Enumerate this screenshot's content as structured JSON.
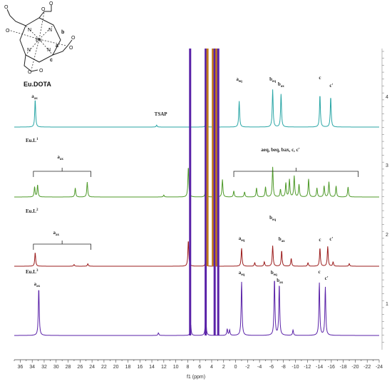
{
  "chart_data": {
    "type": "line",
    "xlabel": "f1 (ppm)",
    "x_reversed": true,
    "xlim": [
      37,
      -24
    ],
    "x_ticks": [
      36,
      34,
      32,
      30,
      28,
      26,
      24,
      22,
      20,
      18,
      16,
      14,
      12,
      10,
      8,
      6,
      4,
      2,
      0,
      -2,
      -4,
      -6,
      -8,
      -10,
      -12,
      -14,
      -16,
      -18,
      -20,
      -22,
      -24
    ],
    "right_axis_ticks": [
      "1",
      "2",
      "3",
      "4"
    ],
    "colors": {
      "eu_dota": "#2aa6a6",
      "eu_l1": "#4f9a2a",
      "eu_l2": "#9b1c1c",
      "eu_l3": "#5a22a8",
      "solvent_orange": "#c07a1a"
    },
    "series": [
      {
        "name": "Eu.DOTA",
        "trace": 4,
        "peaks": [
          {
            "ppm": 33.5,
            "h": 0.55
          },
          {
            "ppm": 13.2,
            "h": 0.04
          },
          {
            "ppm": 5.0,
            "h": 0.08
          },
          {
            "ppm": -0.6,
            "h": 0.52
          },
          {
            "ppm": -6.2,
            "h": 0.75
          },
          {
            "ppm": -7.6,
            "h": 0.66
          },
          {
            "ppm": -14.1,
            "h": 0.64
          },
          {
            "ppm": -15.9,
            "h": 0.6
          }
        ]
      },
      {
        "name": "Eu.L1",
        "trace": 3,
        "peaks": [
          {
            "ppm": 33.6,
            "h": 0.2
          },
          {
            "ppm": 33.1,
            "h": 0.24
          },
          {
            "ppm": 26.8,
            "h": 0.18
          },
          {
            "ppm": 24.8,
            "h": 0.3
          },
          {
            "ppm": 12.0,
            "h": 0.04
          },
          {
            "ppm": 7.9,
            "h": 0.6
          },
          {
            "ppm": 5.0,
            "h": 0.2
          },
          {
            "ppm": 2.2,
            "h": 0.35
          },
          {
            "ppm": 0.3,
            "h": 0.12
          },
          {
            "ppm": -1.5,
            "h": 0.1
          },
          {
            "ppm": -3.5,
            "h": 0.18
          },
          {
            "ppm": -5.0,
            "h": 0.2
          },
          {
            "ppm": -6.2,
            "h": 0.6
          },
          {
            "ppm": -7.5,
            "h": 0.15
          },
          {
            "ppm": -8.4,
            "h": 0.28
          },
          {
            "ppm": -9.0,
            "h": 0.35
          },
          {
            "ppm": -9.8,
            "h": 0.42
          },
          {
            "ppm": -10.6,
            "h": 0.25
          },
          {
            "ppm": -12.2,
            "h": 0.36
          },
          {
            "ppm": -13.6,
            "h": 0.18
          },
          {
            "ppm": -14.8,
            "h": 0.22
          },
          {
            "ppm": -15.6,
            "h": 0.3
          },
          {
            "ppm": -16.8,
            "h": 0.22
          },
          {
            "ppm": -18.8,
            "h": 0.2
          }
        ]
      },
      {
        "name": "Eu.L2",
        "trace": 2,
        "peaks": [
          {
            "ppm": 33.5,
            "h": 0.32
          },
          {
            "ppm": 27.0,
            "h": 0.04
          },
          {
            "ppm": 24.7,
            "h": 0.06
          },
          {
            "ppm": 7.9,
            "h": 0.6
          },
          {
            "ppm": 5.0,
            "h": 0.15
          },
          {
            "ppm": -1.0,
            "h": 0.42
          },
          {
            "ppm": -3.2,
            "h": 0.08
          },
          {
            "ppm": -4.8,
            "h": 0.1
          },
          {
            "ppm": -6.2,
            "h": 0.48
          },
          {
            "ppm": -7.7,
            "h": 0.36
          },
          {
            "ppm": -9.3,
            "h": 0.18
          },
          {
            "ppm": -12.1,
            "h": 0.08
          },
          {
            "ppm": -14.1,
            "h": 0.42
          },
          {
            "ppm": -15.4,
            "h": 0.46
          },
          {
            "ppm": -16.3,
            "h": 0.1
          },
          {
            "ppm": -19.0,
            "h": 0.06
          }
        ]
      },
      {
        "name": "Eu.L3",
        "trace": 1,
        "peaks": [
          {
            "ppm": 32.9,
            "h": 0.88
          },
          {
            "ppm": 12.9,
            "h": 0.05
          },
          {
            "ppm": 7.5,
            "h": 0.2
          },
          {
            "ppm": 5.0,
            "h": 0.4
          },
          {
            "ppm": 1.4,
            "h": 0.12
          },
          {
            "ppm": 1.0,
            "h": 0.1
          },
          {
            "ppm": -1.0,
            "h": 1.0
          },
          {
            "ppm": -6.5,
            "h": 1.05
          },
          {
            "ppm": -7.3,
            "h": 0.95
          },
          {
            "ppm": -9.6,
            "h": 0.1
          },
          {
            "ppm": -14.0,
            "h": 0.98
          },
          {
            "ppm": -15.0,
            "h": 0.9
          }
        ]
      }
    ],
    "series_labels": [
      {
        "trace": 3,
        "text": "Eu.L",
        "sup": "1"
      },
      {
        "trace": 2,
        "text": "Eu.L",
        "sup": "2"
      },
      {
        "trace": 1,
        "text": "Eu.L",
        "sup": "3"
      }
    ],
    "annotations": [
      {
        "trace": 4,
        "ppm": 33.6,
        "base": "a",
        "sub": "ax"
      },
      {
        "trace": 4,
        "ppm": 12.5,
        "text": "TSAP"
      },
      {
        "trace": 4,
        "ppm": -0.6,
        "base": "a",
        "sub": "eq"
      },
      {
        "trace": 4,
        "ppm": -6.2,
        "base": "b",
        "sub": "eq"
      },
      {
        "trace": 4,
        "ppm": -7.6,
        "base": "b",
        "sub": "ax"
      },
      {
        "trace": 4,
        "ppm": -14.1,
        "text": "c"
      },
      {
        "trace": 4,
        "ppm": -16.0,
        "text": "c'"
      },
      {
        "trace": 3,
        "ppm": 29.3,
        "base": "a",
        "sub": "ax"
      },
      {
        "trace": 3,
        "ppm": -7.5,
        "text": "aeq, beq, bax, c, c'"
      },
      {
        "trace": 2,
        "ppm": 30.0,
        "base": "a",
        "sub": "ax"
      },
      {
        "trace": 2,
        "ppm": -1.0,
        "base": "a",
        "sub": "eq"
      },
      {
        "trace": 2,
        "ppm": -6.2,
        "base": "b",
        "sub": "eq"
      },
      {
        "trace": 2,
        "ppm": -7.7,
        "base": "b",
        "sub": "ax"
      },
      {
        "trace": 2,
        "ppm": -14.1,
        "text": "c"
      },
      {
        "trace": 2,
        "ppm": -16.0,
        "text": "c'"
      },
      {
        "trace": 1,
        "ppm": 33.2,
        "base": "a",
        "sub": "ax"
      },
      {
        "trace": 1,
        "ppm": -1.0,
        "base": "a",
        "sub": "eq"
      },
      {
        "trace": 1,
        "ppm": -6.4,
        "base": "b",
        "sub": "eq"
      },
      {
        "trace": 1,
        "ppm": -7.4,
        "base": "b",
        "sub": "ax"
      },
      {
        "trace": 1,
        "ppm": -14.0,
        "text": "c"
      },
      {
        "trace": 1,
        "ppm": -15.2,
        "text": "c'"
      }
    ],
    "brackets": [
      {
        "trace": 3,
        "from_ppm": 33.8,
        "to_ppm": 24.2
      },
      {
        "trace": 3,
        "from_ppm": 0.3,
        "to_ppm": -20.5
      },
      {
        "trace": 2,
        "from_ppm": 33.8,
        "to_ppm": 24.2
      }
    ]
  },
  "structure": {
    "title": "Eu.DOTA",
    "metal": "Eu",
    "atoms": [
      "N",
      "N",
      "N",
      "N",
      "O",
      "O",
      "O",
      "O",
      "O",
      "O",
      "O",
      "O"
    ],
    "bond_labels": [
      "a",
      "b",
      "c"
    ]
  }
}
